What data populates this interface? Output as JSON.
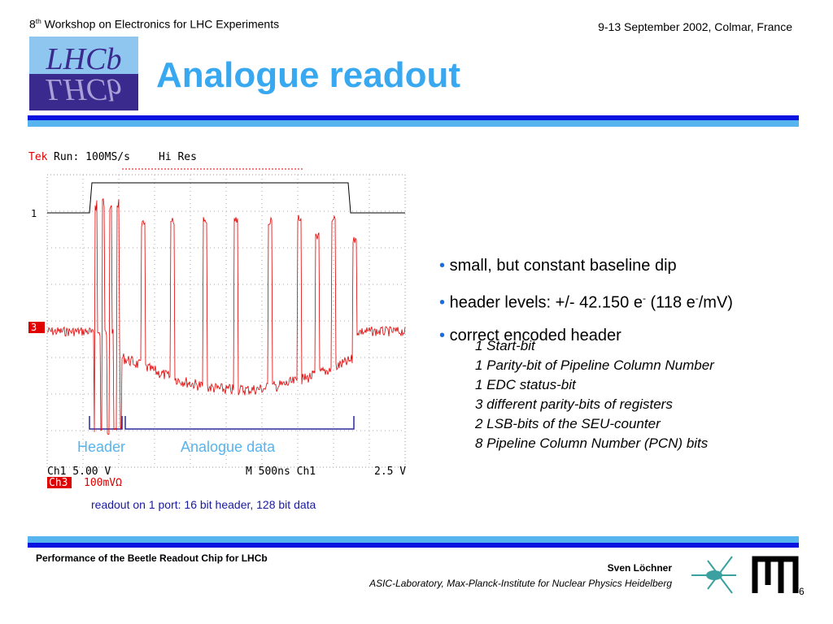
{
  "header": {
    "workshop_ordinal": "8",
    "workshop_suffix": "th",
    "workshop_rest": " Workshop on Electronics for LHC Experiments",
    "date_place": "9-13 September 2002, Colmar, France"
  },
  "logo": {
    "text": "LHCb"
  },
  "title": "Analogue readout",
  "scope": {
    "brand": "Tek",
    "run": "Run: 100MS/s",
    "mode": "Hi Res",
    "ch1_marker": "1",
    "ch3_marker": "3",
    "ch1_scale": "Ch1   5.00 V",
    "timebase": "M  500ns  Ch1",
    "trigger_level": "2.5 V",
    "ch3_label": "Ch3",
    "ch3_scale": "100mVΩ",
    "header_label": "Header",
    "data_label": "Analogue data"
  },
  "caption": "readout on 1 port: 16 bit header, 128 bit data",
  "bullets": [
    {
      "parts": [
        "small, but constant baseline dip"
      ]
    },
    {
      "parts": [
        "header levels: +/- 42.150 e",
        "-",
        " (118 e",
        "-",
        "/mV)"
      ]
    },
    {
      "parts": [
        "correct encoded header"
      ]
    }
  ],
  "sub_items": [
    "1 Start-bit",
    "1 Parity-bit of Pipeline Column Number",
    "1 EDC status-bit",
    "3 different parity-bits of registers",
    "2 LSB-bits of the SEU-counter",
    "8 Pipeline Column Number (PCN) bits"
  ],
  "footer": {
    "left": "Performance of the Beetle Readout Chip for LHCb",
    "author": "Sven Löchner",
    "affiliation": "ASIC-Laboratory, Max-Planck-Institute for Nuclear Physics Heidelberg",
    "page": "6"
  }
}
